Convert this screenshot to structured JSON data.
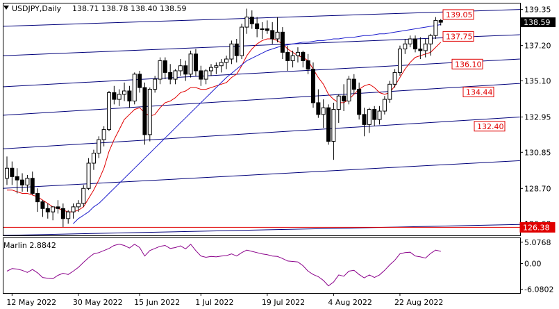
{
  "header": {
    "symbol": "USDJPY,Daily",
    "ohlc": "138.71 138.78 138.40 138.59"
  },
  "colors": {
    "bull": "#ffffff",
    "bear": "#000000",
    "ma_fast": "#e00000",
    "ma_slow": "#1a1acc",
    "channel": "#00007a",
    "level_tag": "#e00000",
    "marlin": "#8a008a",
    "grid_frame": "#000000"
  },
  "chart_data": [
    {
      "type": "candlestick",
      "title": "USDJPY,Daily",
      "y_ticks": [
        "126.60",
        "128.70",
        "130.85",
        "132.95",
        "135.10",
        "137.20",
        "139.35"
      ],
      "x_ticks": [
        "12 May 2022",
        "30 May 2022",
        "15 Jun 2022",
        "1 Jul 2022",
        "19 Jul 2022",
        "4 Aug 2022",
        "22 Aug 2022"
      ],
      "ylim": [
        125.9,
        139.75
      ],
      "current_price": "138.59",
      "level_tags": [
        "139.05",
        "137.75",
        "136.10",
        "134.44",
        "132.40",
        "126.38"
      ],
      "horizontal_line": 126.38,
      "candles": [
        [
          129.3,
          130.6,
          128.9,
          129.9
        ],
        [
          129.9,
          130.3,
          128.9,
          129.4
        ],
        [
          129.4,
          129.9,
          128.4,
          129.2
        ],
        [
          129.2,
          129.6,
          128.5,
          128.9
        ],
        [
          128.9,
          129.5,
          128.5,
          129.3
        ],
        [
          129.3,
          129.7,
          128.3,
          128.4
        ],
        [
          128.4,
          128.7,
          127.3,
          127.9
        ],
        [
          127.9,
          128.0,
          127.0,
          127.5
        ],
        [
          127.5,
          127.8,
          126.9,
          127.3
        ],
        [
          127.3,
          127.6,
          126.8,
          127.6
        ],
        [
          127.6,
          128.0,
          127.2,
          127.5
        ],
        [
          127.5,
          127.8,
          126.4,
          126.9
        ],
        [
          126.9,
          127.4,
          126.6,
          127.3
        ],
        [
          127.3,
          127.8,
          126.9,
          127.6
        ],
        [
          127.6,
          128.0,
          127.3,
          127.8
        ],
        [
          127.8,
          128.9,
          127.6,
          128.7
        ],
        [
          128.7,
          130.5,
          128.6,
          130.2
        ],
        [
          130.2,
          131.0,
          129.8,
          130.8
        ],
        [
          130.8,
          131.8,
          130.5,
          131.6
        ],
        [
          131.6,
          132.4,
          131.2,
          132.2
        ],
        [
          132.2,
          134.5,
          132.1,
          134.4
        ],
        [
          134.4,
          134.8,
          133.7,
          134.0
        ],
        [
          134.0,
          134.6,
          133.6,
          134.3
        ],
        [
          134.3,
          135.0,
          133.9,
          134.5
        ],
        [
          134.5,
          134.8,
          133.5,
          133.9
        ],
        [
          133.9,
          135.6,
          133.7,
          135.5
        ],
        [
          135.5,
          135.7,
          134.4,
          134.7
        ],
        [
          134.7,
          135.0,
          131.3,
          131.9
        ],
        [
          131.9,
          134.7,
          131.5,
          134.6
        ],
        [
          134.6,
          135.4,
          134.4,
          135.2
        ],
        [
          135.2,
          136.5,
          134.9,
          136.3
        ],
        [
          136.3,
          136.5,
          135.2,
          135.6
        ],
        [
          135.6,
          136.1,
          134.9,
          135.2
        ],
        [
          135.2,
          135.8,
          134.9,
          135.7
        ],
        [
          135.7,
          136.4,
          135.4,
          136.0
        ],
        [
          136.0,
          136.3,
          135.1,
          135.5
        ],
        [
          135.5,
          136.9,
          135.3,
          136.7
        ],
        [
          136.7,
          137.0,
          135.4,
          135.7
        ],
        [
          135.7,
          136.0,
          134.8,
          135.2
        ],
        [
          135.2,
          135.8,
          134.9,
          135.7
        ],
        [
          135.7,
          136.1,
          135.4,
          135.9
        ],
        [
          135.9,
          136.2,
          135.5,
          136.0
        ],
        [
          136.0,
          136.4,
          135.6,
          136.2
        ],
        [
          136.2,
          136.6,
          135.8,
          136.4
        ],
        [
          136.4,
          137.5,
          136.1,
          137.3
        ],
        [
          137.3,
          137.6,
          136.2,
          136.6
        ],
        [
          136.6,
          138.5,
          136.4,
          138.3
        ],
        [
          138.3,
          139.4,
          137.9,
          138.9
        ],
        [
          138.9,
          139.3,
          138.2,
          138.5
        ],
        [
          138.5,
          138.9,
          137.7,
          138.2
        ],
        [
          138.2,
          138.6,
          137.6,
          138.2
        ],
        [
          138.2,
          138.7,
          137.9,
          138.1
        ],
        [
          138.1,
          138.6,
          137.3,
          137.6
        ],
        [
          137.6,
          138.9,
          137.4,
          138.0
        ],
        [
          138.0,
          138.3,
          136.4,
          136.8
        ],
        [
          136.8,
          137.2,
          135.7,
          136.3
        ],
        [
          136.3,
          136.9,
          135.9,
          136.6
        ],
        [
          136.6,
          137.1,
          136.2,
          136.8
        ],
        [
          136.8,
          136.9,
          135.9,
          136.3
        ],
        [
          136.3,
          136.7,
          135.5,
          135.8
        ],
        [
          135.8,
          136.2,
          133.5,
          133.8
        ],
        [
          133.8,
          134.6,
          132.9,
          133.1
        ],
        [
          133.1,
          134.0,
          132.3,
          133.5
        ],
        [
          133.5,
          133.7,
          131.3,
          131.5
        ],
        [
          131.5,
          133.8,
          130.4,
          133.4
        ],
        [
          133.4,
          134.3,
          132.6,
          134.2
        ],
        [
          134.2,
          134.9,
          133.3,
          133.9
        ],
        [
          133.9,
          135.4,
          133.7,
          135.2
        ],
        [
          135.2,
          135.5,
          134.3,
          134.6
        ],
        [
          134.6,
          135.0,
          132.8,
          133.1
        ],
        [
          133.1,
          133.5,
          131.8,
          132.5
        ],
        [
          132.5,
          133.5,
          132.0,
          133.4
        ],
        [
          133.4,
          133.6,
          132.4,
          132.8
        ],
        [
          132.8,
          133.6,
          132.5,
          133.3
        ],
        [
          133.3,
          134.2,
          133.1,
          134.0
        ],
        [
          134.0,
          135.1,
          133.8,
          134.9
        ],
        [
          134.9,
          135.8,
          134.7,
          135.6
        ],
        [
          135.6,
          137.2,
          135.4,
          137.0
        ],
        [
          137.0,
          137.6,
          136.7,
          137.3
        ],
        [
          137.3,
          137.8,
          137.1,
          137.6
        ],
        [
          137.6,
          137.8,
          136.8,
          137.0
        ],
        [
          137.0,
          137.7,
          136.4,
          136.9
        ],
        [
          136.9,
          137.6,
          136.5,
          137.3
        ],
        [
          137.3,
          137.9,
          136.6,
          137.8
        ],
        [
          137.8,
          138.9,
          137.6,
          138.7
        ],
        [
          138.7,
          138.78,
          138.4,
          138.59
        ]
      ],
      "series": [
        {
          "name": "",
          "type": "line",
          "values": [
            128.6,
            128.6,
            128.5,
            128.4,
            128.4,
            128.3,
            128.2,
            128.0,
            127.8,
            127.6,
            127.5,
            127.4,
            127.3,
            127.3,
            127.4,
            127.6,
            128.1,
            128.6,
            129.2,
            129.9,
            130.9,
            131.6,
            132.2,
            132.8,
            133.1,
            133.4,
            133.5,
            133.2,
            133.0,
            133.1,
            133.5,
            133.8,
            133.9,
            134.1,
            134.4,
            134.5,
            134.7,
            134.7,
            134.6,
            134.6,
            134.7,
            134.8,
            134.9,
            135.0,
            135.3,
            135.5,
            136.0,
            136.6,
            137.0,
            137.3,
            137.5,
            137.6,
            137.6,
            137.5,
            137.3,
            137.0,
            136.8,
            136.6,
            136.5,
            136.3,
            135.8,
            135.3,
            134.9,
            134.3,
            134.0,
            133.8,
            133.8,
            134.0,
            134.3,
            134.6,
            134.8,
            134.9,
            134.7,
            134.4,
            134.3,
            134.4,
            134.8,
            135.3,
            135.8,
            136.2,
            136.5,
            136.6,
            136.7,
            136.8,
            137.1,
            137.4
          ]
        },
        {
          "name": "",
          "type": "line",
          "values": [
            null,
            null,
            null,
            null,
            null,
            null,
            null,
            null,
            null,
            null,
            null,
            null,
            null,
            126.6,
            126.9,
            127.1,
            127.3,
            127.6,
            127.8,
            128.1,
            128.4,
            128.7,
            129.0,
            129.3,
            129.6,
            129.9,
            130.2,
            130.5,
            130.8,
            131.1,
            131.4,
            131.7,
            132.0,
            132.3,
            132.6,
            132.9,
            133.2,
            133.5,
            133.8,
            134.1,
            134.4,
            134.7,
            135.0,
            135.3,
            135.55,
            135.8,
            136.05,
            136.3,
            136.45,
            136.6,
            136.75,
            136.9,
            137.0,
            137.1,
            137.2,
            137.25,
            137.3,
            137.35,
            137.4,
            137.4,
            137.45,
            137.5,
            137.5,
            137.55,
            137.6,
            137.6,
            137.65,
            137.7,
            137.7,
            137.75,
            137.8,
            137.8,
            137.85,
            137.9,
            137.9,
            137.95,
            138.0,
            138.05,
            138.1,
            138.15,
            138.2,
            138.25,
            138.3,
            138.35,
            138.4,
            138.45
          ]
        }
      ],
      "channel_lines": [
        {
          "start": 138.35,
          "end": 139.35
        },
        {
          "start": 136.6,
          "end": 137.85
        },
        {
          "start": 134.75,
          "end": 136.4
        },
        {
          "start": 133.05,
          "end": 134.95
        },
        {
          "start": 131.05,
          "end": 132.95
        },
        {
          "start": 128.7,
          "end": 130.35
        },
        {
          "start": 125.9,
          "end": 126.55
        }
      ]
    },
    {
      "type": "line",
      "title": "Marlin 2.8842",
      "y_ticks": [
        "5.0768",
        "0.00",
        "-6.0802"
      ],
      "ylim": [
        -7.0,
        6.2
      ],
      "series": [
        {
          "name": "Marlin",
          "values": [
            -1.8,
            -1.2,
            -1.3,
            -1.6,
            -2.1,
            -1.4,
            -2.2,
            -3.3,
            -3.5,
            -3.6,
            -2.8,
            -2.3,
            -2.6,
            -1.8,
            -0.9,
            0.3,
            1.4,
            2.3,
            2.6,
            3.1,
            3.6,
            4.3,
            4.6,
            4.3,
            3.7,
            4.6,
            3.8,
            1.8,
            3.1,
            3.6,
            4.1,
            4.3,
            3.6,
            3.8,
            4.2,
            3.5,
            4.6,
            3.1,
            1.8,
            1.5,
            1.7,
            1.6,
            1.8,
            1.9,
            2.3,
            1.8,
            2.6,
            3.2,
            2.9,
            2.6,
            2.3,
            2.1,
            1.8,
            1.7,
            1.2,
            0.6,
            0.5,
            0.4,
            -0.5,
            -1.8,
            -2.6,
            -3.1,
            -4.0,
            -5.3,
            -4.4,
            -2.7,
            -3.0,
            -1.8,
            -1.6,
            -2.6,
            -3.4,
            -2.7,
            -3.3,
            -2.7,
            -1.6,
            -0.3,
            0.8,
            2.3,
            2.6,
            2.7,
            1.8,
            1.6,
            1.3,
            2.4,
            3.2,
            2.9
          ]
        }
      ]
    }
  ]
}
